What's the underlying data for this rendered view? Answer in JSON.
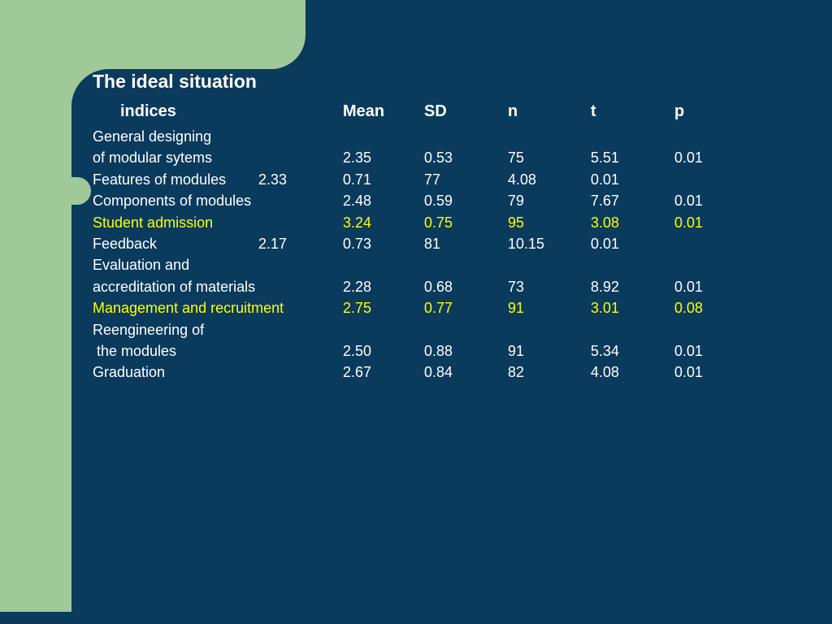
{
  "slide": {
    "title": "The ideal situation",
    "colors": {
      "background_green": "#9FC998",
      "panel_navy": "#0A3A5C",
      "text_white": "#FFFFFF",
      "highlight_yellow": "#FFFF00"
    },
    "table": {
      "header": {
        "indices": "indices",
        "mean": "Mean",
        "sd": "SD",
        "n": "n",
        "t": "t",
        "p": "p"
      },
      "rows": [
        {
          "label": "General designing",
          "extra": "",
          "mean": "",
          "sd": "",
          "n": "",
          "t": "",
          "p": ""
        },
        {
          "label": "of modular sytems",
          "extra": "",
          "mean": "2.35",
          "sd": "0.53",
          "n": "75",
          "t": "5.51",
          "p": "0.01"
        },
        {
          "label": "Features of modules",
          "extra": "2.33",
          "mean": "0.71",
          "sd": "77",
          "n": "4.08",
          "t": "0.01",
          "p": ""
        },
        {
          "label": "Components of modules",
          "extra": "",
          "mean": "2.48",
          "sd": "0.59",
          "n": "79",
          "t": "7.67",
          "p": "0.01"
        },
        {
          "label": "Student admission",
          "extra": "",
          "mean": "3.24",
          "sd": "0.75",
          "n": "95",
          "t": "3.08",
          "p": "0.01"
        },
        {
          "label": "Feedback",
          "extra": "2.17",
          "mean": "0.73",
          "sd": "81",
          "n": "10.15",
          "t": "0.01",
          "p": ""
        },
        {
          "label": "Evaluation and",
          "extra": "",
          "mean": "",
          "sd": "",
          "n": "",
          "t": "",
          "p": ""
        },
        {
          "label": "accreditation of materials",
          "extra": "",
          "mean": "2.28",
          "sd": "0.68",
          "n": "73",
          "t": "8.92",
          "p": "0.01"
        },
        {
          "label": "Management and recruitment",
          "extra": "",
          "mean": "2.75",
          "sd": "0.77",
          "n": "91",
          "t": "3.01",
          "p": "0.08"
        },
        {
          "label": "Reengineering of",
          "extra": "",
          "mean": "",
          "sd": "",
          "n": "",
          "t": "",
          "p": ""
        },
        {
          "label": " the modules",
          "extra": "",
          "mean": "2.50",
          "sd": "0.88",
          "n": "91",
          "t": "5.34",
          "p": "0.01"
        },
        {
          "label": "Graduation",
          "extra": "",
          "mean": "2.67",
          "sd": "0.84",
          "n": "82",
          "t": "4.08",
          "p": "0.01"
        }
      ]
    }
  }
}
